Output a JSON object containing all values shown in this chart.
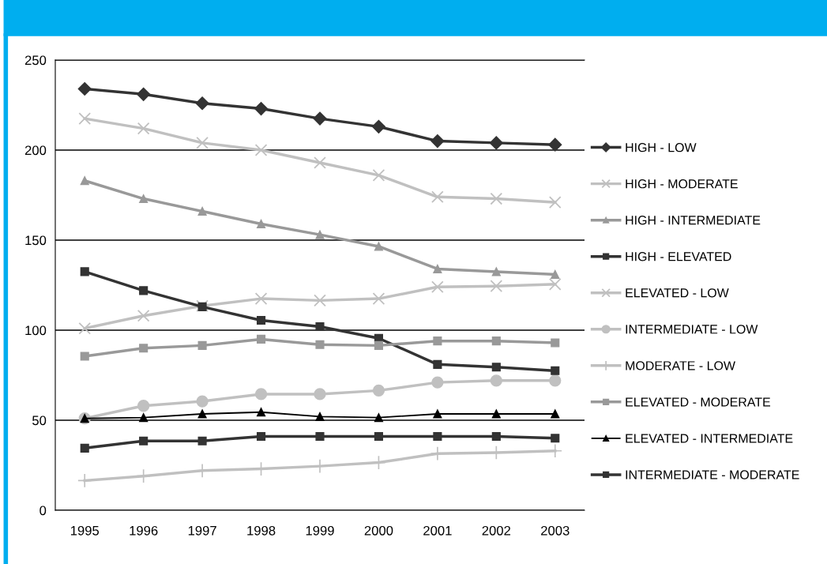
{
  "chart_data": {
    "type": "line",
    "categories": [
      "1995",
      "1996",
      "1997",
      "1998",
      "1999",
      "2000",
      "2001",
      "2002",
      "2003"
    ],
    "ylim": [
      0,
      250
    ],
    "yticks": [
      0,
      50,
      100,
      150,
      200,
      250
    ],
    "grid": "y",
    "legend": "right",
    "series": [
      {
        "name": "HIGH - LOW",
        "color": "#333333",
        "marker": "diamond",
        "values": [
          234,
          231,
          226,
          223,
          217.5,
          213,
          205,
          204,
          203
        ]
      },
      {
        "name": "HIGH - MODERATE",
        "color": "#c0c0c0",
        "marker": "cross",
        "values": [
          217.5,
          212,
          204,
          200,
          193,
          186,
          174,
          173,
          171
        ]
      },
      {
        "name": "HIGH - INTERMEDIATE",
        "color": "#999999",
        "marker": "triangle",
        "values": [
          183,
          173,
          166,
          159,
          153,
          146.5,
          134,
          132.5,
          131
        ]
      },
      {
        "name": "HIGH - ELEVATED",
        "color": "#333333",
        "marker": "square",
        "values": [
          132.5,
          122,
          113,
          105.5,
          102,
          95.5,
          81,
          79.5,
          77.5
        ]
      },
      {
        "name": "ELEVATED - LOW",
        "color": "#c0c0c0",
        "marker": "cross",
        "values": [
          101,
          108,
          113.5,
          117.5,
          116.5,
          117.5,
          124,
          124.5,
          125.5
        ]
      },
      {
        "name": "INTERMEDIATE - LOW",
        "color": "#c0c0c0",
        "marker": "circle",
        "values": [
          51,
          58,
          60.5,
          64.5,
          64.5,
          66.5,
          71,
          72,
          72
        ]
      },
      {
        "name": "MODERATE - LOW",
        "color": "#c0c0c0",
        "marker": "plus",
        "values": [
          16.5,
          19,
          22,
          23,
          24.5,
          26.5,
          31.5,
          32,
          33
        ]
      },
      {
        "name": "ELEVATED - MODERATE",
        "color": "#999999",
        "marker": "square",
        "values": [
          85.5,
          90,
          91.5,
          95,
          92,
          91.5,
          94,
          94,
          93
        ]
      },
      {
        "name": "ELEVATED - INTERMEDIATE",
        "color": "#000000",
        "marker": "triangle",
        "values": [
          51,
          51.5,
          53.5,
          54.5,
          52,
          51.5,
          53.5,
          53.5,
          53.5
        ]
      },
      {
        "name": "INTERMEDIATE - MODERATE",
        "color": "#333333",
        "marker": "square",
        "values": [
          34.5,
          38.5,
          38.5,
          41,
          41,
          41,
          41,
          41,
          40
        ]
      }
    ]
  }
}
